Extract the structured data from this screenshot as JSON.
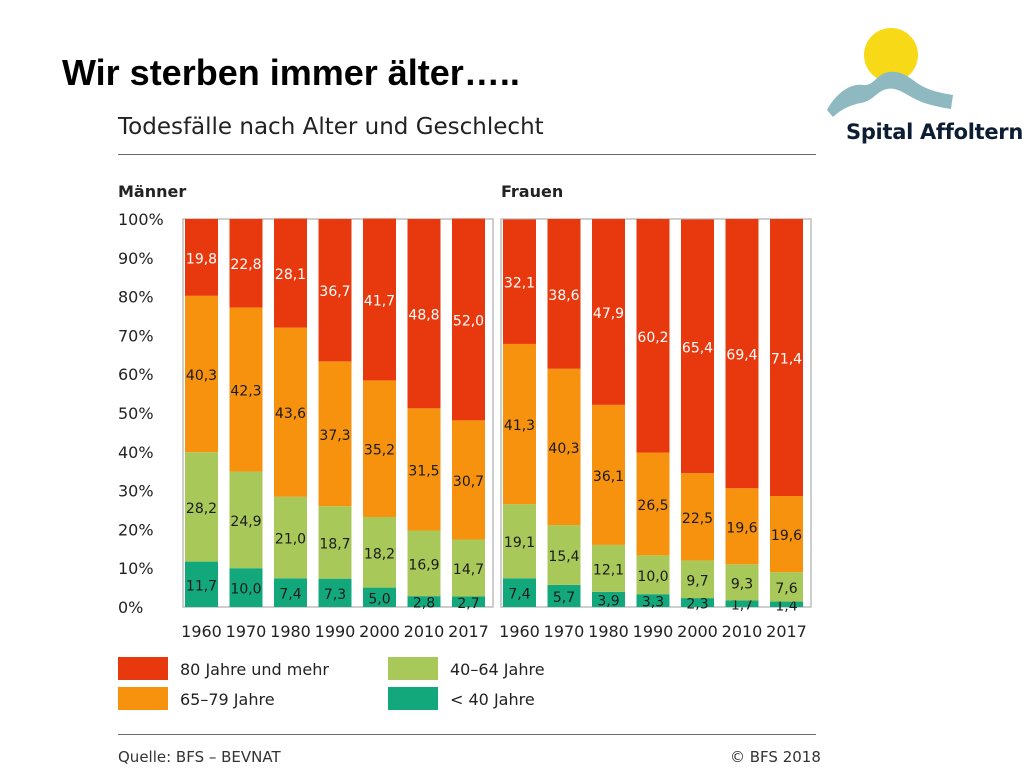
{
  "slide_title": "Wir sterben immer älter…..",
  "logo": {
    "name": "Spital Affoltern",
    "icon": "sun-over-hills-logo-icon",
    "colors": {
      "sun": "#f7d917",
      "hills": "#8fb9c1"
    }
  },
  "chart_data": {
    "type": "bar",
    "stacked": true,
    "percent": true,
    "title": "Todesfälle nach Alter und Geschlecht",
    "ylim": [
      0,
      100
    ],
    "yticks": [
      "0%",
      "10%",
      "20%",
      "30%",
      "40%",
      "50%",
      "60%",
      "70%",
      "80%",
      "90%",
      "100%"
    ],
    "colors": {
      "80 Jahre und mehr": "#e8390e",
      "65–79 Jahre": "#f7920f",
      "40–64 Jahre": "#a8c95a",
      "< 40 Jahre": "#13a87c"
    },
    "panels": [
      {
        "name": "Männer",
        "categories": [
          "1960",
          "1970",
          "1980",
          "1990",
          "2000",
          "2010",
          "2017"
        ],
        "series": [
          {
            "name": "< 40 Jahre",
            "values": [
              11.7,
              10.0,
              7.4,
              7.3,
              5.0,
              2.8,
              2.7
            ],
            "labels": [
              "11,7",
              "10,0",
              "7,4",
              "7,3",
              "5,0",
              "2,8",
              "2,7"
            ]
          },
          {
            "name": "40–64 Jahre",
            "values": [
              28.2,
              24.9,
              21.0,
              18.7,
              18.2,
              16.9,
              14.7
            ],
            "labels": [
              "28,2",
              "24,9",
              "21,0",
              "18,7",
              "18,2",
              "16,9",
              "14,7"
            ]
          },
          {
            "name": "65–79 Jahre",
            "values": [
              40.3,
              42.3,
              43.6,
              37.3,
              35.2,
              31.5,
              30.7
            ],
            "labels": [
              "40,3",
              "42,3",
              "43,6",
              "37,3",
              "35,2",
              "31,5",
              "30,7"
            ]
          },
          {
            "name": "80 Jahre und mehr",
            "values": [
              19.8,
              22.8,
              28.1,
              36.7,
              41.7,
              48.8,
              52.0
            ],
            "labels": [
              "19,8",
              "22,8",
              "28,1",
              "36,7",
              "41,7",
              "48,8",
              "52,0"
            ]
          }
        ]
      },
      {
        "name": "Frauen",
        "categories": [
          "1960",
          "1970",
          "1980",
          "1990",
          "2000",
          "2010",
          "2017"
        ],
        "series": [
          {
            "name": "< 40 Jahre",
            "values": [
              7.4,
              5.7,
              3.9,
              3.3,
              2.3,
              1.7,
              1.4
            ],
            "labels": [
              "7,4",
              "5,7",
              "3,9",
              "3,3",
              "2,3",
              "1,7",
              "1,4"
            ]
          },
          {
            "name": "40–64 Jahre",
            "values": [
              19.1,
              15.4,
              12.1,
              10.0,
              9.7,
              9.3,
              7.6
            ],
            "labels": [
              "19,1",
              "15,4",
              "12,1",
              "10,0",
              "9,7",
              "9,3",
              "7,6"
            ]
          },
          {
            "name": "65–79 Jahre",
            "values": [
              41.3,
              40.3,
              36.1,
              26.5,
              22.5,
              19.6,
              19.6
            ],
            "labels": [
              "41,3",
              "40,3",
              "36,1",
              "26,5",
              "22,5",
              "19,6",
              "19,6"
            ]
          },
          {
            "name": "80 Jahre und mehr",
            "values": [
              32.1,
              38.6,
              47.9,
              60.2,
              65.4,
              69.4,
              71.4
            ],
            "labels": [
              "32,1",
              "38,6",
              "47,9",
              "60,2",
              "65,4",
              "69,4",
              "71,4"
            ]
          }
        ]
      }
    ],
    "legend": {
      "placement": "bottom",
      "entries": [
        "80 Jahre und mehr",
        "40–64 Jahre",
        "65–79 Jahre",
        "< 40 Jahre"
      ]
    }
  },
  "footer": {
    "source": "Quelle: BFS – BEVNAT",
    "copyright": "© BFS 2018"
  }
}
